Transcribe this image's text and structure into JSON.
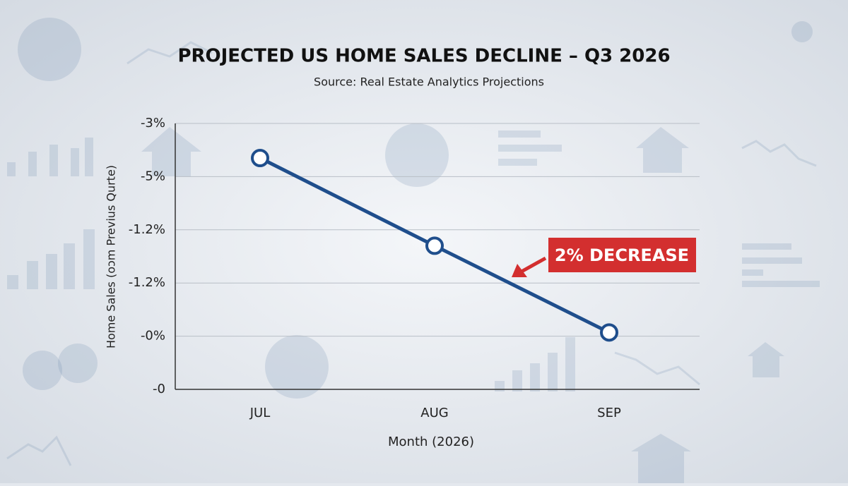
{
  "chart_data": {
    "type": "line",
    "title": "PROJECTED US HOME SALES DECLINE – Q3 2026",
    "subtitle": "Source: Real Estate Analytics Projections",
    "x_label": "Month (2026)",
    "y_label": "Home Sales (oɔm Previus Qurte)",
    "categories": [
      "JUL",
      "AUG",
      "SEP"
    ],
    "series": [
      {
        "name": "Home Sales",
        "color": "#1f4e8c",
        "values": [
          4.35,
          2.7,
          1.07
        ]
      }
    ],
    "ylim": [
      0,
      5
    ],
    "yticks": [
      {
        "value": 0,
        "label": "-0"
      },
      {
        "value": 1,
        "label": "-0%"
      },
      {
        "value": 2,
        "label": "-1.2%"
      },
      {
        "value": 3,
        "label": "-1.2%"
      },
      {
        "value": 4,
        "label": "-5%"
      },
      {
        "value": 5,
        "label": "-3%"
      }
    ],
    "grid": true,
    "annotations": [
      {
        "text": "2% DECREASE",
        "color": "#d32f2f"
      }
    ]
  }
}
